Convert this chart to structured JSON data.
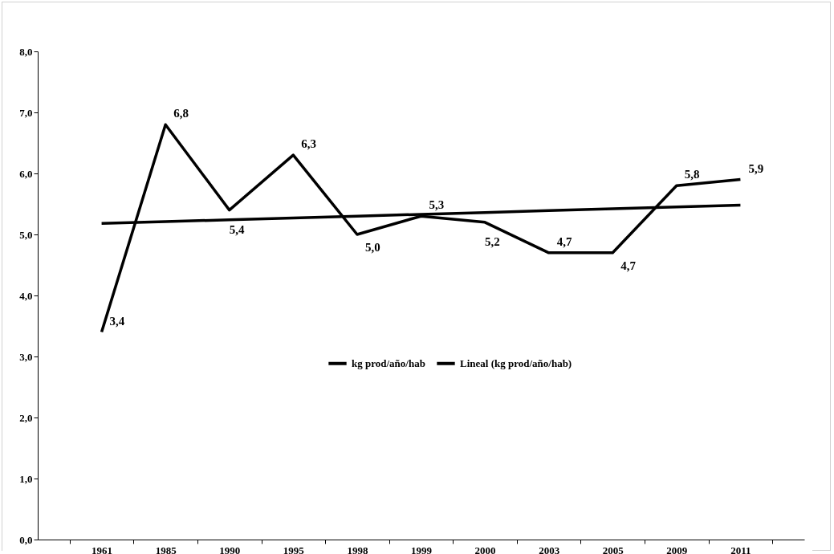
{
  "chart_data": {
    "type": "line",
    "categories": [
      "1961",
      "1985",
      "1990",
      "1995",
      "1998",
      "1999",
      "2000",
      "2003",
      "2005",
      "2009",
      "2011"
    ],
    "series": [
      {
        "name": "kg prod/año/hab",
        "color": "#000000",
        "values": [
          3.4,
          6.8,
          5.4,
          6.3,
          5.0,
          5.3,
          5.2,
          4.7,
          4.7,
          5.8,
          5.9
        ],
        "value_labels": [
          "3,4",
          "6,8",
          "5,4",
          "6,3",
          "5,0",
          "5,3",
          "5,2",
          "4,7",
          "4,7",
          "5,8",
          "5,9"
        ]
      },
      {
        "name": "Lineal (kg prod/año/hab)",
        "type": "line",
        "color": "#000000",
        "values": [
          5.18,
          5.21,
          5.24,
          5.27,
          5.3,
          5.33,
          5.36,
          5.39,
          5.42,
          5.45,
          5.48
        ]
      }
    ],
    "ylim": [
      0,
      8
    ],
    "yticks": [
      {
        "value": 0,
        "label": "0,0"
      },
      {
        "value": 1,
        "label": "1,0"
      },
      {
        "value": 2,
        "label": "2,0"
      },
      {
        "value": 3,
        "label": "3,0"
      },
      {
        "value": 4,
        "label": "4,0"
      },
      {
        "value": 5,
        "label": "5,0"
      },
      {
        "value": 6,
        "label": "6,0"
      },
      {
        "value": 7,
        "label": "7,0"
      },
      {
        "value": 8,
        "label": "8,0"
      }
    ],
    "grid": false,
    "legend": "bottom"
  }
}
